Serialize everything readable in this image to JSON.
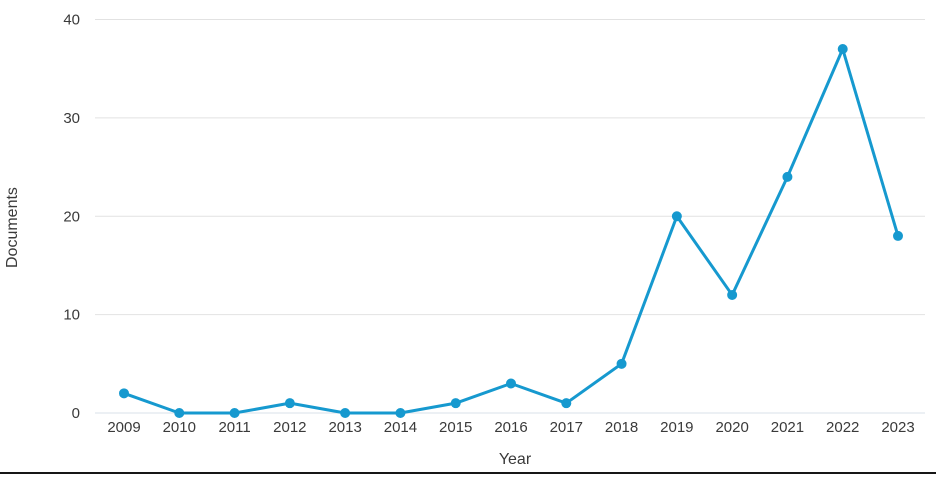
{
  "chart_data": {
    "type": "line",
    "title": "",
    "xlabel": "Year",
    "ylabel": "Documents",
    "categories": [
      "2009",
      "2010",
      "2011",
      "2012",
      "2013",
      "2014",
      "2015",
      "2016",
      "2017",
      "2018",
      "2019",
      "2020",
      "2021",
      "2022",
      "2023"
    ],
    "series": [
      {
        "name": "Documents",
        "values": [
          2,
          0,
          0,
          1,
          0,
          0,
          1,
          3,
          1,
          5,
          20,
          12,
          24,
          37,
          18
        ]
      }
    ],
    "ylim": [
      0,
      40
    ],
    "yticks": [
      0,
      10,
      20,
      30,
      40
    ],
    "grid": "horizontal",
    "legend": "none",
    "colors": {
      "line": "#1699cf",
      "marker": "#1699cf",
      "gridline": "#e2e2e2",
      "zero_gridline": "#d9e1e8",
      "tick_text": "#3a3a3a",
      "axis_title_text": "#3a3a3a",
      "page_divider": "#161616",
      "background": "#ffffff"
    }
  }
}
